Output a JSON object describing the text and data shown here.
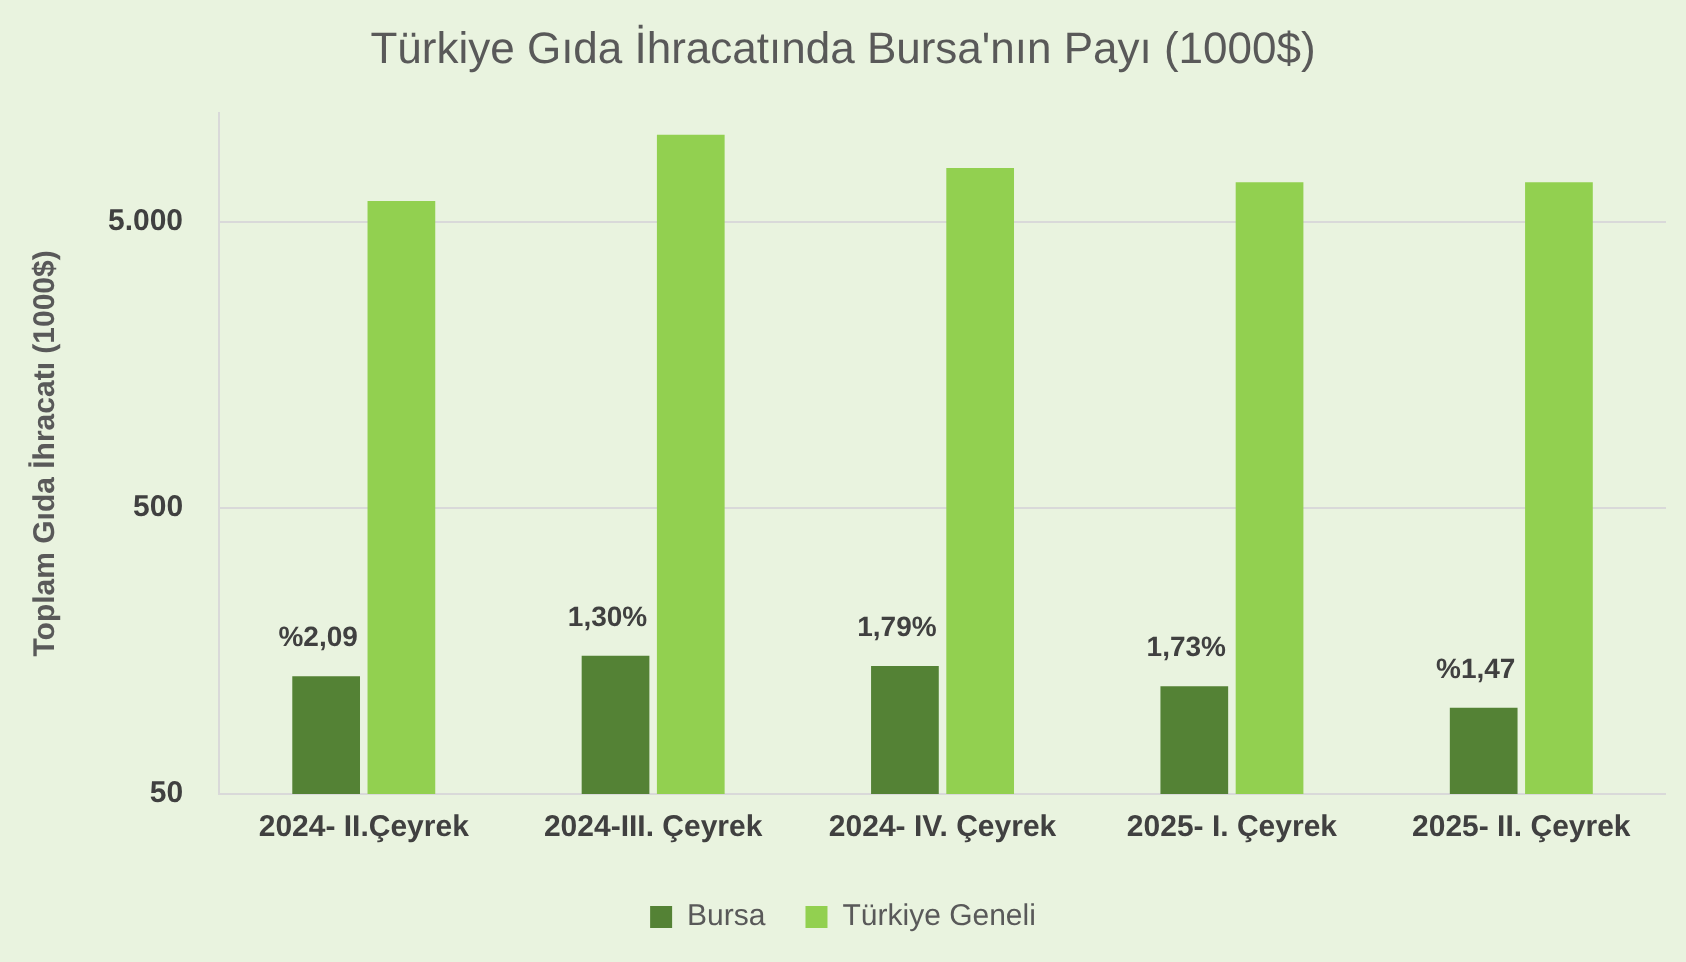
{
  "chart_data": {
    "type": "bar",
    "title": "Türkiye Gıda İhracatında Bursa'nın Payı (1000$)",
    "ylabel": "Toplam Gıda İhracatı (1000$)",
    "categories": [
      "2024- II.Çeyrek",
      "2024-III. Çeyrek",
      "2024- IV. Çeyrek",
      "2025- I. Çeyrek",
      "2025- II. Çeyrek"
    ],
    "series": [
      {
        "name": "Bursa",
        "color": "#548235",
        "values": [
          129,
          152,
          140,
          119,
          100
        ]
      },
      {
        "name": "Türkiye Geneli",
        "color": "#92d050",
        "values": [
          5900,
          10050,
          7700,
          6860,
          6860
        ]
      }
    ],
    "annotations": [
      {
        "text": "%2,09",
        "x": "2024- II.Çeyrek",
        "y": 129
      },
      {
        "text": "1,30%",
        "x": "2024-III. Çeyrek",
        "y": 152
      },
      {
        "text": "1,79%",
        "x": "2024- IV. Çeyrek",
        "y": 140
      },
      {
        "text": "1,73%",
        "x": "2025- I. Çeyrek",
        "y": 119
      },
      {
        "text": "%1,47",
        "x": "2025- II. Çeyrek",
        "y": 100
      }
    ],
    "log": "y",
    "ylim": [
      50,
      12000
    ],
    "yticks": [
      50,
      500,
      {
        "value": 5000,
        "label": "5.000"
      }
    ],
    "grid": "y",
    "legend": "bottom"
  }
}
